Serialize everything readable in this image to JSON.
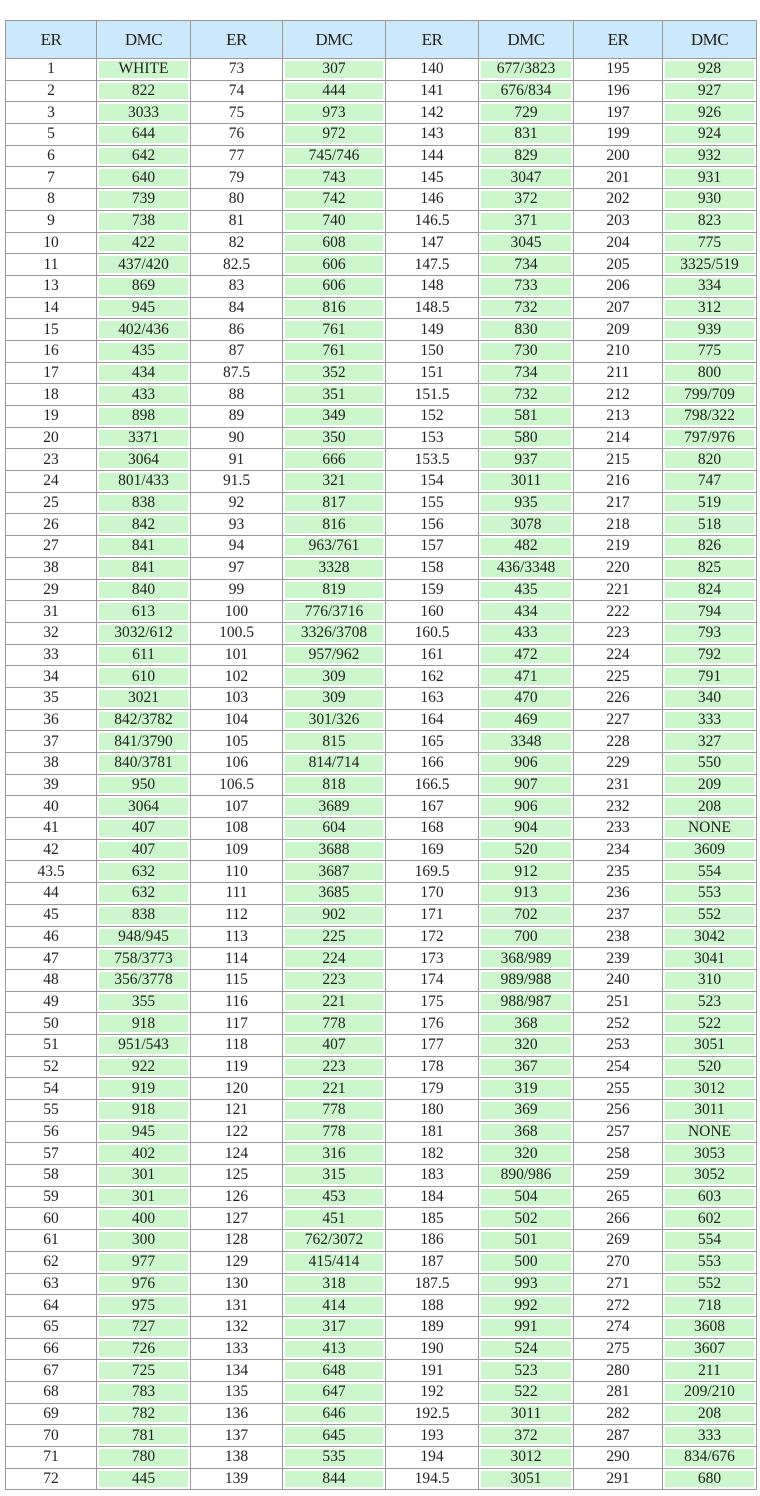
{
  "table": {
    "headers": [
      "ER",
      "DMC",
      "ER",
      "DMC",
      "ER",
      "DMC",
      "ER",
      "DMC"
    ],
    "rows": [
      [
        "1",
        "WHITE",
        "73",
        "307",
        "140",
        "677/3823",
        "195",
        "928"
      ],
      [
        "2",
        "822",
        "74",
        "444",
        "141",
        "676/834",
        "196",
        "927"
      ],
      [
        "3",
        "3033",
        "75",
        "973",
        "142",
        "729",
        "197",
        "926"
      ],
      [
        "5",
        "644",
        "76",
        "972",
        "143",
        "831",
        "199",
        "924"
      ],
      [
        "6",
        "642",
        "77",
        "745/746",
        "144",
        "829",
        "200",
        "932"
      ],
      [
        "7",
        "640",
        "79",
        "743",
        "145",
        "3047",
        "201",
        "931"
      ],
      [
        "8",
        "739",
        "80",
        "742",
        "146",
        "372",
        "202",
        "930"
      ],
      [
        "9",
        "738",
        "81",
        "740",
        "146.5",
        "371",
        "203",
        "823"
      ],
      [
        "10",
        "422",
        "82",
        "608",
        "147",
        "3045",
        "204",
        "775"
      ],
      [
        "11",
        "437/420",
        "82.5",
        "606",
        "147.5",
        "734",
        "205",
        "3325/519"
      ],
      [
        "13",
        "869",
        "83",
        "606",
        "148",
        "733",
        "206",
        "334"
      ],
      [
        "14",
        "945",
        "84",
        "816",
        "148.5",
        "732",
        "207",
        "312"
      ],
      [
        "15",
        "402/436",
        "86",
        "761",
        "149",
        "830",
        "209",
        "939"
      ],
      [
        "16",
        "435",
        "87",
        "761",
        "150",
        "730",
        "210",
        "775"
      ],
      [
        "17",
        "434",
        "87.5",
        "352",
        "151",
        "734",
        "211",
        "800"
      ],
      [
        "18",
        "433",
        "88",
        "351",
        "151.5",
        "732",
        "212",
        "799/709"
      ],
      [
        "19",
        "898",
        "89",
        "349",
        "152",
        "581",
        "213",
        "798/322"
      ],
      [
        "20",
        "3371",
        "90",
        "350",
        "153",
        "580",
        "214",
        "797/976"
      ],
      [
        "23",
        "3064",
        "91",
        "666",
        "153.5",
        "937",
        "215",
        "820"
      ],
      [
        "24",
        "801/433",
        "91.5",
        "321",
        "154",
        "3011",
        "216",
        "747"
      ],
      [
        "25",
        "838",
        "92",
        "817",
        "155",
        "935",
        "217",
        "519"
      ],
      [
        "26",
        "842",
        "93",
        "816",
        "156",
        "3078",
        "218",
        "518"
      ],
      [
        "27",
        "841",
        "94",
        "963/761",
        "157",
        "482",
        "219",
        "826"
      ],
      [
        "38",
        "841",
        "97",
        "3328",
        "158",
        "436/3348",
        "220",
        "825"
      ],
      [
        "29",
        "840",
        "99",
        "819",
        "159",
        "435",
        "221",
        "824"
      ],
      [
        "31",
        "613",
        "100",
        "776/3716",
        "160",
        "434",
        "222",
        "794"
      ],
      [
        "32",
        "3032/612",
        "100.5",
        "3326/3708",
        "160.5",
        "433",
        "223",
        "793"
      ],
      [
        "33",
        "611",
        "101",
        "957/962",
        "161",
        "472",
        "224",
        "792"
      ],
      [
        "34",
        "610",
        "102",
        "309",
        "162",
        "471",
        "225",
        "791"
      ],
      [
        "35",
        "3021",
        "103",
        "309",
        "163",
        "470",
        "226",
        "340"
      ],
      [
        "36",
        "842/3782",
        "104",
        "301/326",
        "164",
        "469",
        "227",
        "333"
      ],
      [
        "37",
        "841/3790",
        "105",
        "815",
        "165",
        "3348",
        "228",
        "327"
      ],
      [
        "38",
        "840/3781",
        "106",
        "814/714",
        "166",
        "906",
        "229",
        "550"
      ],
      [
        "39",
        "950",
        "106.5",
        "818",
        "166.5",
        "907",
        "231",
        "209"
      ],
      [
        "40",
        "3064",
        "107",
        "3689",
        "167",
        "906",
        "232",
        "208"
      ],
      [
        "41",
        "407",
        "108",
        "604",
        "168",
        "904",
        "233",
        "NONE"
      ],
      [
        "42",
        "407",
        "109",
        "3688",
        "169",
        "520",
        "234",
        "3609"
      ],
      [
        "43.5",
        "632",
        "110",
        "3687",
        "169.5",
        "912",
        "235",
        "554"
      ],
      [
        "44",
        "632",
        "111",
        "3685",
        "170",
        "913",
        "236",
        "553"
      ],
      [
        "45",
        "838",
        "112",
        "902",
        "171",
        "702",
        "237",
        "552"
      ],
      [
        "46",
        "948/945",
        "113",
        "225",
        "172",
        "700",
        "238",
        "3042"
      ],
      [
        "47",
        "758/3773",
        "114",
        "224",
        "173",
        "368/989",
        "239",
        "3041"
      ],
      [
        "48",
        "356/3778",
        "115",
        "223",
        "174",
        "989/988",
        "240",
        "310"
      ],
      [
        "49",
        "355",
        "116",
        "221",
        "175",
        "988/987",
        "251",
        "523"
      ],
      [
        "50",
        "918",
        "117",
        "778",
        "176",
        "368",
        "252",
        "522"
      ],
      [
        "51",
        "951/543",
        "118",
        "407",
        "177",
        "320",
        "253",
        "3051"
      ],
      [
        "52",
        "922",
        "119",
        "223",
        "178",
        "367",
        "254",
        "520"
      ],
      [
        "54",
        "919",
        "120",
        "221",
        "179",
        "319",
        "255",
        "3012"
      ],
      [
        "55",
        "918",
        "121",
        "778",
        "180",
        "369",
        "256",
        "3011"
      ],
      [
        "56",
        "945",
        "122",
        "778",
        "181",
        "368",
        "257",
        "NONE"
      ],
      [
        "57",
        "402",
        "124",
        "316",
        "182",
        "320",
        "258",
        "3053"
      ],
      [
        "58",
        "301",
        "125",
        "315",
        "183",
        "890/986",
        "259",
        "3052"
      ],
      [
        "59",
        "301",
        "126",
        "453",
        "184",
        "504",
        "265",
        "603"
      ],
      [
        "60",
        "400",
        "127",
        "451",
        "185",
        "502",
        "266",
        "602"
      ],
      [
        "61",
        "300",
        "128",
        "762/3072",
        "186",
        "501",
        "269",
        "554"
      ],
      [
        "62",
        "977",
        "129",
        "415/414",
        "187",
        "500",
        "270",
        "553"
      ],
      [
        "63",
        "976",
        "130",
        "318",
        "187.5",
        "993",
        "271",
        "552"
      ],
      [
        "64",
        "975",
        "131",
        "414",
        "188",
        "992",
        "272",
        "718"
      ],
      [
        "65",
        "727",
        "132",
        "317",
        "189",
        "991",
        "274",
        "3608"
      ],
      [
        "66",
        "726",
        "133",
        "413",
        "190",
        "524",
        "275",
        "3607"
      ],
      [
        "67",
        "725",
        "134",
        "648",
        "191",
        "523",
        "280",
        "211"
      ],
      [
        "68",
        "783",
        "135",
        "647",
        "192",
        "522",
        "281",
        "209/210"
      ],
      [
        "69",
        "782",
        "136",
        "646",
        "192.5",
        "3011",
        "282",
        "208"
      ],
      [
        "70",
        "781",
        "137",
        "645",
        "193",
        "372",
        "287",
        "333"
      ],
      [
        "71",
        "780",
        "138",
        "535",
        "194",
        "3012",
        "290",
        "834/676"
      ],
      [
        "72",
        "445",
        "139",
        "844",
        "194.5",
        "3051",
        "291",
        "680"
      ]
    ]
  },
  "colors": {
    "header_bg": "#cce8fb",
    "dmc_bg": "#ccf7cc",
    "grid": "#9a9a9a"
  }
}
